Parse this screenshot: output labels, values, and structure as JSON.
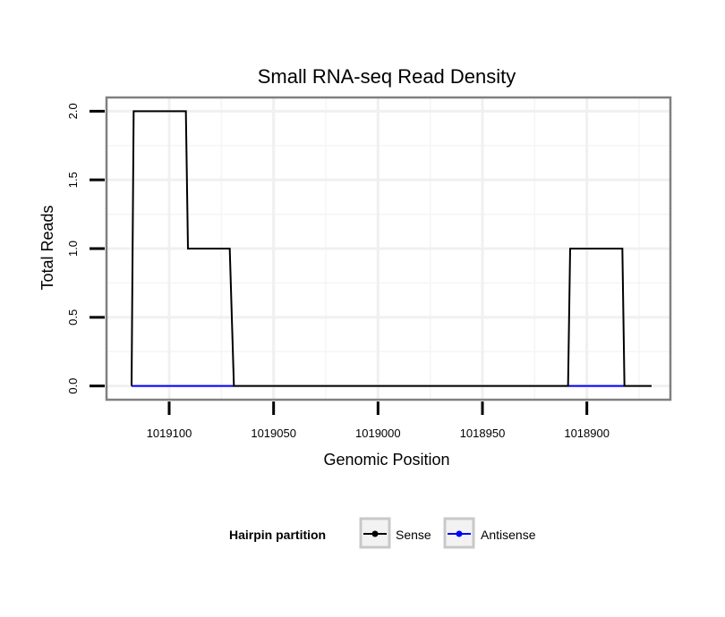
{
  "chart_data": {
    "type": "line",
    "title": "Small RNA-seq Read Density",
    "xlabel": "Genomic Position",
    "ylabel": "Total Reads",
    "xlim": [
      1019130,
      1018860
    ],
    "ylim": [
      -0.1,
      2.1
    ],
    "x_reversed": true,
    "x_ticks": [
      1019100,
      1019050,
      1019000,
      1018950,
      1018900
    ],
    "x_tick_labels": [
      "1019100",
      "1019050",
      "1019000",
      "1018950",
      "1018900"
    ],
    "y_ticks": [
      0.0,
      0.5,
      1.0,
      1.5,
      2.0
    ],
    "y_tick_labels": [
      "0.0",
      "0.5",
      "1.0",
      "1.5",
      "2.0"
    ],
    "grid": true,
    "legend": {
      "title": "Hairpin partition",
      "position": "bottom",
      "entries": [
        {
          "name": "Sense",
          "color": "#000000"
        },
        {
          "name": "Antisense",
          "color": "#0000ff"
        }
      ]
    },
    "series": [
      {
        "name": "Sense",
        "color": "#000000",
        "x": [
          1019118,
          1019117,
          1019092,
          1019091,
          1019071,
          1019069,
          1018909,
          1018908,
          1018883,
          1018882,
          1018869
        ],
        "y": [
          0,
          2,
          2,
          1,
          1,
          0,
          0,
          1,
          1,
          0,
          0
        ]
      },
      {
        "name": "Antisense",
        "color": "#0000ff",
        "segments": [
          {
            "x": [
              1019118,
              1019069
            ],
            "y": [
              0,
              0
            ]
          },
          {
            "x": [
              1018909,
              1018882
            ],
            "y": [
              0,
              0
            ]
          }
        ]
      }
    ]
  }
}
